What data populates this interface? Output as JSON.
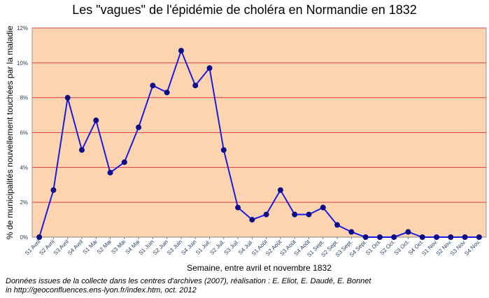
{
  "chart_data": {
    "type": "line",
    "title": "Les \"vagues\" de l'épidémie de choléra en Normandie en 1832",
    "xlabel": "Semaine, entre avril et novembre 1832",
    "ylabel": "% de municipalités nouvellement touchées par la maladie",
    "ylim": [
      0,
      12
    ],
    "yticks": [
      "0%",
      "2%",
      "4%",
      "6%",
      "8%",
      "10%",
      "12%"
    ],
    "grid": true,
    "categories": [
      "S1 Avril",
      "S2 Avril",
      "S3 Avril",
      "S4 Avril",
      "S1 Mai",
      "S2 Mai",
      "S3 Mai",
      "S4 Mai",
      "S1 Juin",
      "S2 Juin",
      "S3 Juin",
      "S4 Juin",
      "S1 Juil.",
      "S2 Juil.",
      "S3 Juil.",
      "S4 Juil.",
      "S1 Août",
      "S2 Août",
      "S3 Août",
      "S4 Août",
      "S1 Sept.",
      "S2 Sept.",
      "S3 Sept.",
      "S4 Sept.",
      "S1 Oct.",
      "S2 Oct.",
      "S3 Oct.",
      "S4 Oct.",
      "S1 Nov.",
      "S2 Nov.",
      "S3 Nov.",
      "S4 Nov."
    ],
    "values": [
      0,
      2.7,
      8.0,
      5.0,
      6.7,
      3.7,
      4.3,
      6.3,
      8.7,
      8.3,
      10.7,
      8.7,
      9.7,
      5.0,
      1.7,
      1.0,
      1.3,
      2.7,
      1.3,
      1.3,
      1.7,
      0.7,
      0.3,
      0,
      0,
      0,
      0.3,
      0,
      0,
      0,
      0,
      0
    ],
    "colors": {
      "plot_bg": "#fcd5b0",
      "line": "#1a1ae6",
      "marker": "#0d0d8a",
      "grid": "#e04040"
    }
  },
  "source": {
    "line1": "Données issues de la collecte dans les centres d'archives (2007), réalisation : E. Eliot, E. Daudé, E. Bonnet",
    "line2": "in http://geoconfluences.ens-lyon.fr/index.htm, oct. 2012"
  }
}
